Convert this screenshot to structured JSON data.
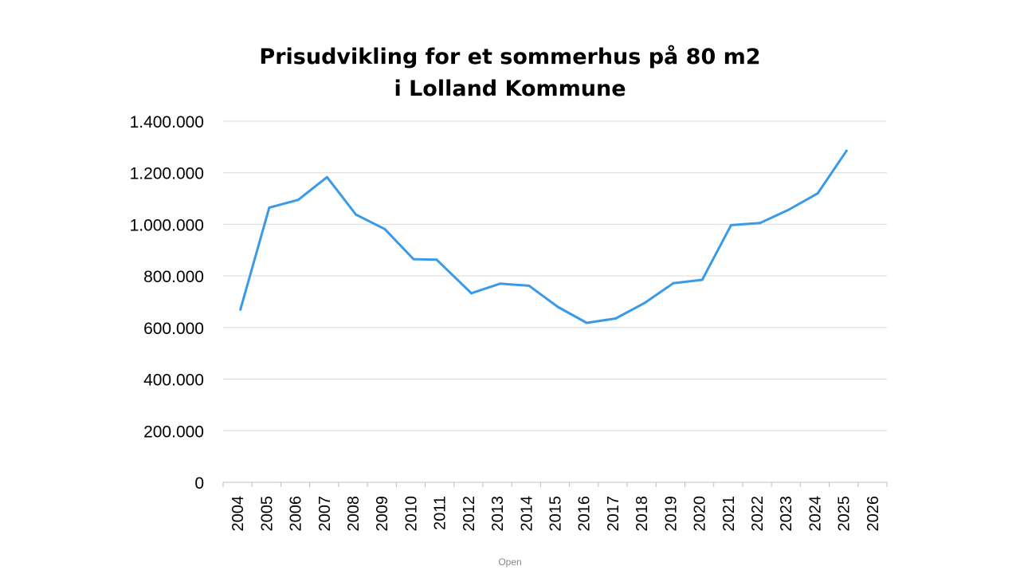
{
  "chart_data": {
    "type": "line",
    "title_line1": "Prisudvikling for et sommerhus på 80 m2",
    "title_line2": "i Lolland Kommune",
    "categories": [
      "2004",
      "2005",
      "2006",
      "2007",
      "2008",
      "2009",
      "2010",
      "2011",
      "2012",
      "2013",
      "2014",
      "2015",
      "2016",
      "2017",
      "2018",
      "2019",
      "2020",
      "2021",
      "2022",
      "2023",
      "2024",
      "2025",
      "2026"
    ],
    "x": [
      2004.1,
      2005.1,
      2006.1,
      2007.1,
      2008.1,
      2009.1,
      2010.1,
      2010.9,
      2012.1,
      2013.1,
      2014.1,
      2015.1,
      2016.1,
      2017.1,
      2018.1,
      2019.1,
      2020.1,
      2021.1,
      2022.1,
      2023.1,
      2024.1,
      2025.1
    ],
    "values": [
      670000,
      1065000,
      1095000,
      1183000,
      1038000,
      982000,
      865000,
      863000,
      733000,
      770000,
      762000,
      680000,
      618000,
      635000,
      695000,
      772000,
      785000,
      997000,
      1005000,
      1057000,
      1120000,
      1285000
    ],
    "ylim": [
      0,
      1400000
    ],
    "yticks": [
      "0",
      "200.000",
      "400.000",
      "600.000",
      "800.000",
      "1.000.000",
      "1.200.000",
      "1.400.000"
    ],
    "ytick_values": [
      0,
      200000,
      400000,
      600000,
      800000,
      1000000,
      1200000,
      1400000
    ],
    "grid": true,
    "line_color": "#3b9ae8",
    "grid_color": "#d9d9d9",
    "axis_color": "#bfbfbf"
  },
  "footer": "Open"
}
